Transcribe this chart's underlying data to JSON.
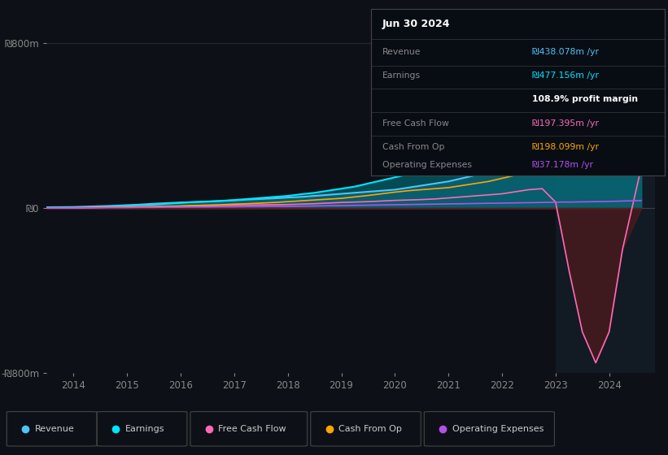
{
  "bg_color": "#0d1117",
  "plot_bg_color": "#0d1117",
  "ylim": [
    -800,
    900
  ],
  "yticks": [
    -800,
    0,
    800
  ],
  "ytick_labels": [
    "-₪800m",
    "₪0",
    "₪800m"
  ],
  "xlim_start": 2013.5,
  "xlim_end": 2024.85,
  "xticks": [
    2014,
    2015,
    2016,
    2017,
    2018,
    2019,
    2020,
    2021,
    2022,
    2023,
    2024
  ],
  "series_colors": {
    "revenue": "#4fc3f7",
    "earnings": "#00e5ff",
    "free_cash_flow": "#ff69b4",
    "cash_from_op": "#ffa500",
    "operating_expenses": "#b44fec"
  },
  "legend_items": [
    {
      "label": "Revenue",
      "color": "#4fc3f7"
    },
    {
      "label": "Earnings",
      "color": "#00e5ff"
    },
    {
      "label": "Free Cash Flow",
      "color": "#ff69b4"
    },
    {
      "label": "Cash From Op",
      "color": "#ffa500"
    },
    {
      "label": "Operating Expenses",
      "color": "#b44fec"
    }
  ],
  "info_box_title": "Jun 30 2024",
  "info_rows": [
    {
      "label": "Revenue",
      "value": "₪438.078m /yr",
      "value_color": "#4fc3f7"
    },
    {
      "label": "Earnings",
      "value": "₪477.156m /yr",
      "value_color": "#00e5ff"
    },
    {
      "label": "",
      "value": "108.9% profit margin",
      "value_color": "#ffffff",
      "bold": true
    },
    {
      "label": "Free Cash Flow",
      "value": "₪197.395m /yr",
      "value_color": "#ff69b4"
    },
    {
      "label": "Cash From Op",
      "value": "₪198.099m /yr",
      "value_color": "#ffa500"
    },
    {
      "label": "Operating Expenses",
      "value": "₪37.178m /yr",
      "value_color": "#b44fec"
    }
  ],
  "years": [
    2013.5,
    2014,
    2014.25,
    2014.5,
    2014.75,
    2015,
    2015.25,
    2015.5,
    2015.75,
    2016,
    2016.25,
    2016.5,
    2016.75,
    2017,
    2017.25,
    2017.5,
    2017.75,
    2018,
    2018.25,
    2018.5,
    2018.75,
    2019,
    2019.25,
    2019.5,
    2019.75,
    2020,
    2020.25,
    2020.5,
    2020.75,
    2021,
    2021.25,
    2021.5,
    2021.75,
    2022,
    2022.25,
    2022.5,
    2022.75,
    2023,
    2023.1,
    2023.25,
    2023.5,
    2023.75,
    2024,
    2024.25,
    2024.6
  ],
  "revenue": [
    5,
    6,
    8,
    10,
    12,
    15,
    18,
    22,
    25,
    28,
    30,
    32,
    35,
    38,
    42,
    45,
    48,
    52,
    55,
    60,
    65,
    70,
    75,
    80,
    85,
    90,
    100,
    110,
    120,
    130,
    145,
    160,
    175,
    195,
    220,
    260,
    300,
    350,
    370,
    380,
    410,
    440,
    450,
    440,
    438
  ],
  "earnings": [
    2,
    3,
    5,
    7,
    10,
    12,
    15,
    18,
    22,
    26,
    30,
    33,
    36,
    40,
    45,
    50,
    55,
    60,
    68,
    75,
    85,
    95,
    105,
    120,
    135,
    150,
    165,
    180,
    200,
    225,
    260,
    300,
    340,
    400,
    480,
    560,
    620,
    660,
    640,
    580,
    450,
    330,
    350,
    480,
    477
  ],
  "free_cash_flow": [
    1,
    2,
    3,
    4,
    5,
    6,
    7,
    8,
    9,
    10,
    11,
    12,
    13,
    14,
    15,
    16,
    17,
    18,
    20,
    22,
    25,
    28,
    30,
    32,
    35,
    38,
    40,
    42,
    45,
    50,
    55,
    60,
    65,
    70,
    80,
    90,
    95,
    30,
    -100,
    -300,
    -600,
    -750,
    -600,
    -200,
    197
  ],
  "cash_from_op": [
    1,
    2,
    3,
    4,
    5,
    6,
    7,
    8,
    9,
    11,
    13,
    15,
    17,
    20,
    22,
    25,
    28,
    32,
    36,
    40,
    44,
    48,
    55,
    62,
    70,
    78,
    85,
    90,
    95,
    100,
    110,
    120,
    130,
    145,
    160,
    175,
    185,
    185,
    188,
    190,
    193,
    195,
    196,
    198,
    198
  ],
  "operating_expenses": [
    1,
    1,
    2,
    2,
    3,
    3,
    4,
    4,
    5,
    5,
    6,
    6,
    7,
    7,
    8,
    8,
    9,
    9,
    10,
    11,
    12,
    13,
    14,
    15,
    16,
    17,
    18,
    19,
    20,
    21,
    22,
    23,
    24,
    25,
    26,
    27,
    28,
    29,
    30,
    30,
    31,
    32,
    33,
    35,
    37
  ]
}
